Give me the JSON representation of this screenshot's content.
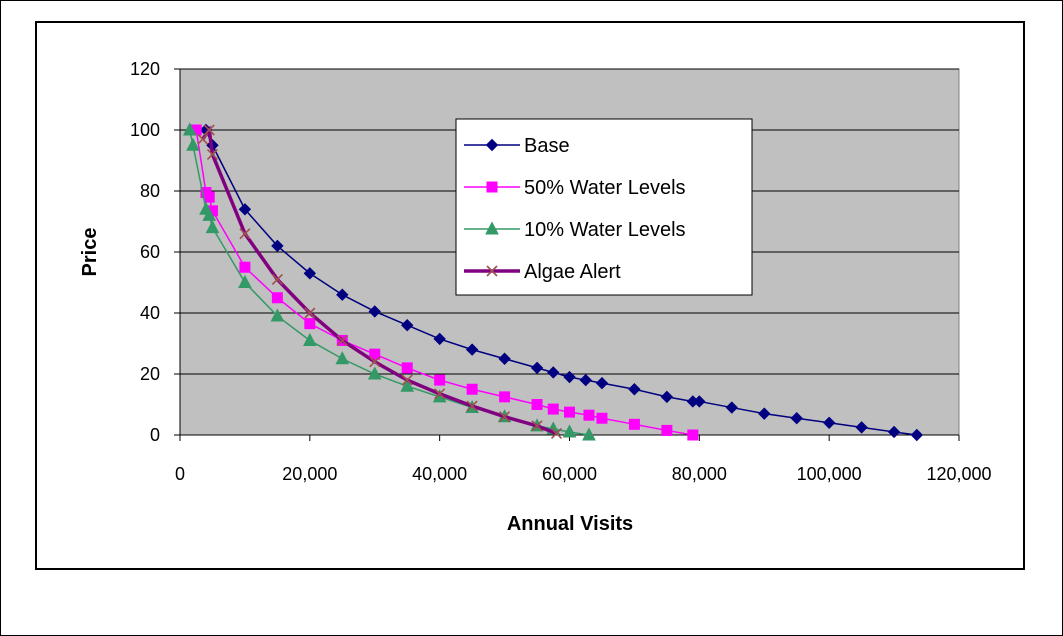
{
  "chart_data": {
    "type": "line",
    "title": "",
    "xlabel": "Annual Visits",
    "ylabel": "Price",
    "xlim": [
      0,
      120000
    ],
    "ylim": [
      0,
      120
    ],
    "x_ticks": [
      "0",
      "20,000",
      "40,000",
      "60,000",
      "80,000",
      "100,000",
      "120,000"
    ],
    "y_ticks": [
      "0",
      "20",
      "40",
      "60",
      "80",
      "100",
      "120"
    ],
    "grid": "horizontal",
    "legend_position": "top-center",
    "background": "#C0C0C0",
    "series": [
      {
        "name": "Base",
        "color": "#000080",
        "marker": "diamond",
        "points": [
          [
            4000,
            100
          ],
          [
            5000,
            95
          ],
          [
            10000,
            74
          ],
          [
            15000,
            62
          ],
          [
            20000,
            53
          ],
          [
            25000,
            46
          ],
          [
            30000,
            40.5
          ],
          [
            35000,
            36
          ],
          [
            40000,
            31.5
          ],
          [
            45000,
            28
          ],
          [
            50000,
            25
          ],
          [
            55000,
            22
          ],
          [
            57500,
            20.5
          ],
          [
            60000,
            19
          ],
          [
            62500,
            18
          ],
          [
            65000,
            17
          ],
          [
            70000,
            15
          ],
          [
            75000,
            12.5
          ],
          [
            79000,
            11
          ],
          [
            80000,
            11
          ],
          [
            85000,
            9
          ],
          [
            90000,
            7
          ],
          [
            95000,
            5.5
          ],
          [
            100000,
            4
          ],
          [
            105000,
            2.5
          ],
          [
            110000,
            1
          ],
          [
            113500,
            0
          ]
        ]
      },
      {
        "name": "50% Water Levels",
        "color": "#FF00FF",
        "marker": "square",
        "points": [
          [
            2500,
            100
          ],
          [
            4000,
            79.5
          ],
          [
            4500,
            78
          ],
          [
            5000,
            73.5
          ],
          [
            10000,
            55
          ],
          [
            15000,
            45
          ],
          [
            20000,
            36.5
          ],
          [
            25000,
            31
          ],
          [
            30000,
            26.5
          ],
          [
            35000,
            22
          ],
          [
            40000,
            18
          ],
          [
            45000,
            15
          ],
          [
            50000,
            12.5
          ],
          [
            55000,
            10
          ],
          [
            57500,
            8.5
          ],
          [
            60000,
            7.5
          ],
          [
            63000,
            6.5
          ],
          [
            65000,
            5.5
          ],
          [
            70000,
            3.5
          ],
          [
            75000,
            1.5
          ],
          [
            79000,
            0
          ]
        ]
      },
      {
        "name": "10% Water Levels",
        "color": "#339966",
        "marker": "triangle",
        "points": [
          [
            1500,
            100
          ],
          [
            2000,
            95
          ],
          [
            4000,
            74
          ],
          [
            4500,
            72
          ],
          [
            5000,
            68
          ],
          [
            10000,
            50
          ],
          [
            15000,
            39
          ],
          [
            20000,
            31
          ],
          [
            25000,
            25
          ],
          [
            30000,
            20
          ],
          [
            35000,
            16
          ],
          [
            40000,
            12.5
          ],
          [
            45000,
            9
          ],
          [
            50000,
            6
          ],
          [
            55000,
            3
          ],
          [
            57500,
            2
          ],
          [
            60000,
            1
          ],
          [
            63000,
            0
          ]
        ]
      },
      {
        "name": "Algae Alert",
        "color": "#800080",
        "marker": "x",
        "points": [
          [
            3500,
            97
          ],
          [
            4500,
            100
          ],
          [
            5000,
            92
          ],
          [
            10000,
            66
          ],
          [
            15000,
            51
          ],
          [
            20000,
            40
          ],
          [
            25000,
            31
          ],
          [
            30000,
            24
          ],
          [
            35000,
            18
          ],
          [
            40000,
            13.5
          ],
          [
            45000,
            9.5
          ],
          [
            50000,
            6
          ],
          [
            55000,
            3
          ],
          [
            58000,
            0.5
          ]
        ]
      }
    ]
  }
}
